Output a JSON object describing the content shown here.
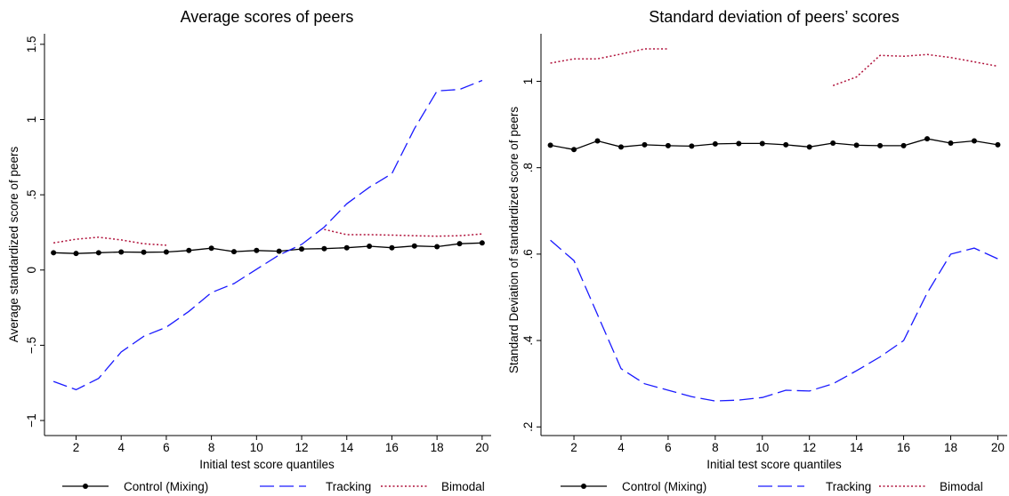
{
  "legend": {
    "control_label": "Control (Mixing)",
    "tracking_label": "Tracking",
    "bimodal_label": "Bimodal"
  },
  "colors": {
    "title": "#2a3d66",
    "control": "#000000",
    "tracking": "#1a1aff",
    "bimodal": "#b0123b"
  },
  "chart_data": [
    {
      "type": "line",
      "title": "Average scores of peers",
      "xlabel": "Initial test score quantiles",
      "ylabel": "Average standardized score of peers",
      "xlim": [
        0.6,
        20.4
      ],
      "ylim": [
        -1.1,
        1.57
      ],
      "xticks": [
        2,
        4,
        6,
        8,
        10,
        12,
        14,
        16,
        18,
        20
      ],
      "xtick_labels": [
        "2",
        "4",
        "6",
        "8",
        "10",
        "12",
        "14",
        "16",
        "18",
        "20"
      ],
      "yticks": [
        -1,
        -0.5,
        0,
        0.5,
        1,
        1.5
      ],
      "ytick_labels": [
        "−1",
        "−.5",
        "0",
        ".5",
        "1",
        "1.5"
      ],
      "series": [
        {
          "name": "Control (Mixing)",
          "style": "solid-dots",
          "x": [
            1,
            2,
            3,
            4,
            5,
            6,
            7,
            8,
            9,
            10,
            11,
            12,
            13,
            14,
            15,
            16,
            17,
            18,
            19,
            20
          ],
          "y": [
            0.115,
            0.11,
            0.115,
            0.12,
            0.118,
            0.12,
            0.13,
            0.145,
            0.122,
            0.13,
            0.125,
            0.14,
            0.142,
            0.148,
            0.158,
            0.148,
            0.16,
            0.155,
            0.175,
            0.18
          ]
        },
        {
          "name": "Tracking",
          "style": "long-dash",
          "x": [
            1,
            2,
            3,
            4,
            5,
            6,
            7,
            8,
            9,
            10,
            11,
            12,
            13,
            14,
            15,
            16,
            17,
            18,
            19,
            20
          ],
          "y": [
            -0.74,
            -0.795,
            -0.72,
            -0.545,
            -0.44,
            -0.38,
            -0.275,
            -0.15,
            -0.09,
            0.005,
            0.1,
            0.17,
            0.285,
            0.44,
            0.55,
            0.64,
            0.94,
            1.19,
            1.2,
            1.26
          ]
        },
        {
          "name": "Bimodal",
          "style": "dotted",
          "segments": [
            {
              "x": [
                1,
                2,
                3,
                4,
                5,
                6
              ],
              "y": [
                0.18,
                0.205,
                0.218,
                0.2,
                0.175,
                0.165
              ]
            },
            {
              "x": [
                13,
                14,
                15,
                16,
                17,
                18,
                19,
                20
              ],
              "y": [
                0.27,
                0.235,
                0.235,
                0.232,
                0.228,
                0.225,
                0.228,
                0.24
              ]
            }
          ]
        }
      ]
    },
    {
      "type": "line",
      "title": "Standard deviation of peers’ scores",
      "xlabel": "Initial test score quantiles",
      "ylabel": "Standard Deviation of standardized score of peers",
      "xlim": [
        0.6,
        20.4
      ],
      "ylim": [
        0.18,
        1.11
      ],
      "xticks": [
        2,
        4,
        6,
        8,
        10,
        12,
        14,
        16,
        18,
        20
      ],
      "xtick_labels": [
        "2",
        "4",
        "6",
        "8",
        "10",
        "12",
        "14",
        "16",
        "18",
        "20"
      ],
      "yticks": [
        0.2,
        0.4,
        0.6,
        0.8,
        1
      ],
      "ytick_labels": [
        ".2",
        ".4",
        ".6",
        ".8",
        "1"
      ],
      "series": [
        {
          "name": "Control (Mixing)",
          "style": "solid-dots",
          "x": [
            1,
            2,
            3,
            4,
            5,
            6,
            7,
            8,
            9,
            10,
            11,
            12,
            13,
            14,
            15,
            16,
            17,
            18,
            19,
            20
          ],
          "y": [
            0.852,
            0.842,
            0.862,
            0.848,
            0.853,
            0.851,
            0.85,
            0.855,
            0.856,
            0.856,
            0.853,
            0.848,
            0.857,
            0.852,
            0.851,
            0.851,
            0.867,
            0.857,
            0.862,
            0.853
          ]
        },
        {
          "name": "Tracking",
          "style": "long-dash",
          "x": [
            1,
            2,
            3,
            4,
            5,
            6,
            7,
            8,
            9,
            10,
            11,
            12,
            13,
            14,
            15,
            16,
            17,
            18,
            19,
            20
          ],
          "y": [
            0.632,
            0.585,
            0.46,
            0.335,
            0.3,
            0.285,
            0.27,
            0.26,
            0.262,
            0.268,
            0.285,
            0.283,
            0.3,
            0.33,
            0.362,
            0.4,
            0.51,
            0.6,
            0.614,
            0.589
          ]
        },
        {
          "name": "Bimodal",
          "style": "dotted",
          "segments": [
            {
              "x": [
                1,
                2,
                3,
                4,
                5,
                6
              ],
              "y": [
                1.042,
                1.052,
                1.052,
                1.063,
                1.075,
                1.075
              ]
            },
            {
              "x": [
                13,
                14,
                15,
                16,
                17,
                18,
                19,
                20
              ],
              "y": [
                0.99,
                1.01,
                1.06,
                1.058,
                1.062,
                1.055,
                1.045,
                1.035
              ]
            }
          ]
        }
      ]
    }
  ]
}
